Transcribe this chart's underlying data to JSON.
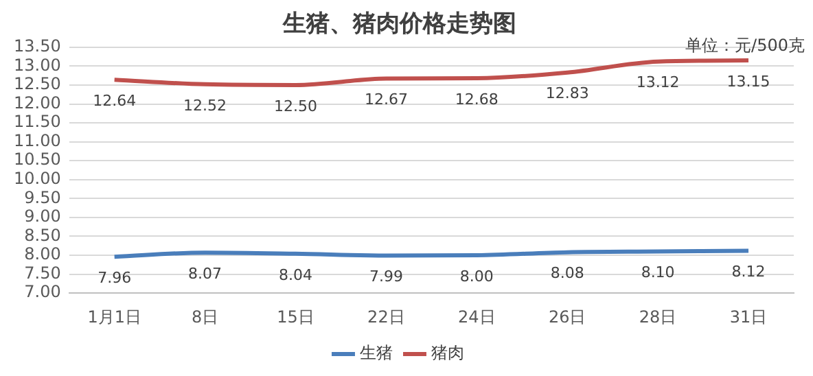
{
  "chart_data": {
    "type": "line",
    "title": "生猪、猪肉价格走势图",
    "annotations": [
      "单位：元/500克"
    ],
    "categories": [
      "1月1日",
      "8日",
      "15日",
      "22日",
      "24日",
      "26日",
      "28日",
      "31日"
    ],
    "series": [
      {
        "name": "生猪",
        "color": "#4a7ebb",
        "values": [
          7.96,
          8.07,
          8.04,
          7.99,
          8.0,
          8.08,
          8.1,
          8.12
        ],
        "value_labels": [
          "7.96",
          "8.07",
          "8.04",
          "7.99",
          "8.00",
          "8.08",
          "8.10",
          "8.12"
        ]
      },
      {
        "name": "猪肉",
        "color": "#c0504d",
        "values": [
          12.64,
          12.52,
          12.5,
          12.67,
          12.68,
          12.83,
          13.12,
          13.15
        ],
        "value_labels": [
          "12.64",
          "12.52",
          "12.50",
          "12.67",
          "12.68",
          "12.83",
          "13.12",
          "13.15"
        ]
      }
    ],
    "ylim": [
      7,
      13.5
    ],
    "yticks": [
      {
        "value": 7,
        "label": "7.00"
      },
      {
        "value": 7.5,
        "label": "7.50"
      },
      {
        "value": 8,
        "label": "8.00"
      },
      {
        "value": 8.5,
        "label": "8.50"
      },
      {
        "value": 9,
        "label": "9.00"
      },
      {
        "value": 9.5,
        "label": "9.50"
      },
      {
        "value": 10,
        "label": "10.00"
      },
      {
        "value": 10.5,
        "label": "10.50"
      },
      {
        "value": 11,
        "label": "11.00"
      },
      {
        "value": 11.5,
        "label": "11.50"
      },
      {
        "value": 12,
        "label": "12.00"
      },
      {
        "value": 12.5,
        "label": "12.50"
      },
      {
        "value": 13,
        "label": "13.00"
      },
      {
        "value": 13.5,
        "label": "13.50"
      }
    ],
    "grid": "y",
    "legend": "bottom",
    "marker": "none",
    "line_style": "solid"
  }
}
